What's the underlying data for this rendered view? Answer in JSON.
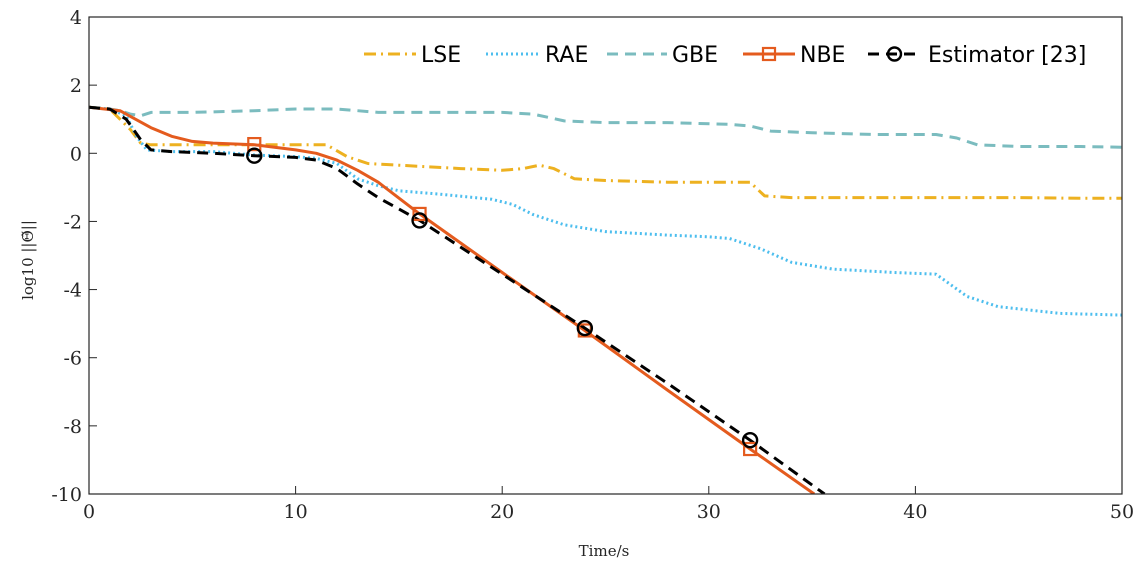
{
  "chart_data": {
    "type": "line",
    "title": "",
    "xlabel": "Time/s",
    "ylabel": "log10 ||Θ̃||",
    "xlim": [
      0,
      50
    ],
    "ylim": [
      -10,
      4
    ],
    "xticks": [
      0,
      10,
      20,
      30,
      40,
      50
    ],
    "xtick_labels": [
      "0",
      "10",
      "20",
      "30",
      "40",
      "50"
    ],
    "yticks": [
      4,
      2,
      0,
      -2,
      -4,
      -6,
      -8,
      -10
    ],
    "ytick_labels": [
      "4",
      "2",
      "0",
      "-2",
      "-4",
      "-6",
      "-8",
      "-10"
    ],
    "grid": false,
    "legend_position": "top-right",
    "series": [
      {
        "name": "LSE",
        "color": "#EDB120",
        "style": "dashdot",
        "x": [
          0,
          1,
          2,
          2.5,
          3,
          5,
          8,
          10,
          11.5,
          12.5,
          13.5,
          15,
          18,
          20,
          21,
          21.8,
          22.5,
          23.5,
          25,
          28,
          31,
          32,
          32.7,
          34,
          38,
          40,
          42,
          45,
          48,
          50
        ],
        "y": [
          1.35,
          1.3,
          0.7,
          0.3,
          0.25,
          0.25,
          0.25,
          0.25,
          0.25,
          -0.1,
          -0.3,
          -0.35,
          -0.45,
          -0.5,
          -0.45,
          -0.35,
          -0.45,
          -0.75,
          -0.8,
          -0.85,
          -0.85,
          -0.85,
          -1.25,
          -1.3,
          -1.3,
          -1.3,
          -1.3,
          -1.3,
          -1.32,
          -1.32
        ]
      },
      {
        "name": "RAE",
        "color": "#4DBEEE",
        "style": "dotted",
        "x": [
          0,
          1,
          1.8,
          2.3,
          2.8,
          4,
          6,
          8,
          10,
          11,
          12,
          13,
          14,
          15,
          17,
          19.5,
          20.5,
          21.5,
          23,
          25,
          28,
          30,
          31,
          32.5,
          34,
          36,
          39,
          41,
          42.5,
          44,
          47,
          50
        ],
        "y": [
          1.35,
          1.3,
          1.1,
          0.5,
          0.1,
          0.05,
          0.05,
          -0.05,
          -0.1,
          -0.15,
          -0.3,
          -0.75,
          -0.95,
          -1.1,
          -1.2,
          -1.35,
          -1.5,
          -1.8,
          -2.1,
          -2.3,
          -2.4,
          -2.45,
          -2.5,
          -2.8,
          -3.2,
          -3.4,
          -3.5,
          -3.55,
          -4.2,
          -4.5,
          -4.7,
          -4.75
        ]
      },
      {
        "name": "GBE",
        "color": "#7BBCBF",
        "style": "dashed",
        "x": [
          0,
          1,
          1.5,
          2,
          2.5,
          3,
          5,
          8,
          10,
          12,
          14,
          16,
          18,
          20,
          21.5,
          23,
          25,
          28,
          31,
          32,
          33,
          35,
          38,
          41,
          42,
          43,
          45,
          48,
          50
        ],
        "y": [
          1.35,
          1.3,
          1.25,
          1.15,
          1.1,
          1.2,
          1.2,
          1.25,
          1.3,
          1.3,
          1.2,
          1.2,
          1.2,
          1.2,
          1.15,
          0.95,
          0.9,
          0.9,
          0.85,
          0.8,
          0.65,
          0.6,
          0.55,
          0.55,
          0.45,
          0.25,
          0.2,
          0.2,
          0.18
        ]
      },
      {
        "name": "NBE",
        "color": "#E45B1E",
        "style": "solid",
        "marker": "square",
        "marker_x": [
          8,
          16,
          24,
          32
        ],
        "marker_y": [
          0.27,
          -1.78,
          -5.2,
          -8.68
        ],
        "x": [
          0,
          1.5,
          3,
          4,
          5,
          6,
          8,
          10,
          11,
          12,
          13,
          14,
          16,
          20,
          24,
          28,
          32,
          35.1
        ],
        "y": [
          1.35,
          1.25,
          0.75,
          0.5,
          0.35,
          0.3,
          0.25,
          0.1,
          0.0,
          -0.2,
          -0.5,
          -0.85,
          -1.78,
          -3.5,
          -5.2,
          -6.95,
          -8.68,
          -10.0
        ]
      },
      {
        "name": "Estimator [23]",
        "color": "#000000",
        "style": "dashed",
        "marker": "circle",
        "marker_x": [
          8,
          16,
          24,
          32
        ],
        "marker_y": [
          -0.07,
          -1.97,
          -5.13,
          -8.42
        ],
        "x": [
          0,
          1,
          1.8,
          2.5,
          3,
          4,
          6,
          8,
          10,
          11,
          12,
          13,
          14,
          16,
          20,
          24,
          28,
          32,
          35.6
        ],
        "y": [
          1.35,
          1.3,
          1.0,
          0.4,
          0.1,
          0.05,
          0.0,
          -0.07,
          -0.12,
          -0.2,
          -0.45,
          -0.9,
          -1.3,
          -1.97,
          -3.55,
          -5.13,
          -6.75,
          -8.42,
          -10.0
        ]
      }
    ]
  }
}
